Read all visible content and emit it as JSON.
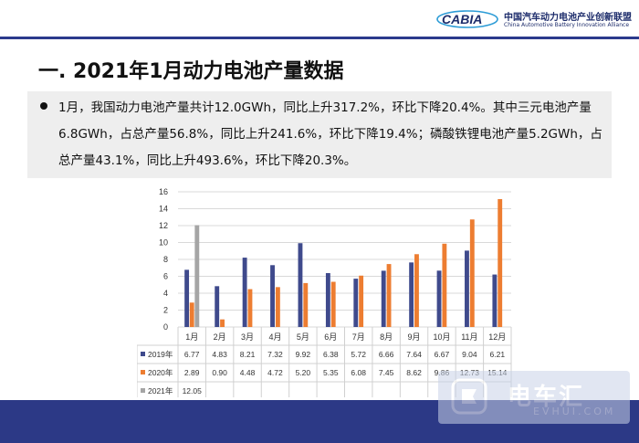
{
  "header": {
    "logo_text": "CABIA",
    "org_cn": "中国汽车动力电池产业创新联盟",
    "org_en": "China Automotive Battery Innovation Alliance"
  },
  "title": "一. 2021年1月动力电池产量数据",
  "summary": "1月，我国动力电池产量共计12.0GWh，同比上升317.2%，环比下降20.4%。其中三元电池产量6.8GWh，占总产量56.8%，同比上升241.6%，环比下降19.4%；磷酸铁锂电池产量5.2GWh，占总产量43.1%，同比上升493.6%，环比下降20.3%。",
  "watermark": {
    "name": "电车汇",
    "url": "EVHUI.COM"
  },
  "colors": {
    "brand_navy": "#2c3986",
    "s2019": "#3f4a8c",
    "s2020": "#ed7d31",
    "s2021": "#a5a5a5"
  },
  "chart_data": {
    "type": "bar",
    "categories": [
      "1月",
      "2月",
      "3月",
      "4月",
      "5月",
      "6月",
      "7月",
      "8月",
      "9月",
      "10月",
      "11月",
      "12月"
    ],
    "series": [
      {
        "name": "2019年",
        "color": "#3f4a8c",
        "values": [
          6.77,
          4.83,
          8.21,
          7.32,
          9.92,
          6.38,
          5.72,
          6.66,
          7.64,
          6.67,
          9.04,
          6.21
        ],
        "labels": [
          "6.77",
          "4.83",
          "8.21",
          "7.32",
          "9.92",
          "6.38",
          "5.72",
          "6.66",
          "7.64",
          "6.67",
          "9.04",
          "6.21"
        ]
      },
      {
        "name": "2020年",
        "color": "#ed7d31",
        "values": [
          2.89,
          0.9,
          4.48,
          4.72,
          5.2,
          5.35,
          6.08,
          7.45,
          8.62,
          9.86,
          12.73,
          15.14
        ],
        "labels": [
          "2.89",
          "0.90",
          "4.48",
          "4.72",
          "5.20",
          "5.35",
          "6.08",
          "7.45",
          "8.62",
          "9.86",
          "12.73",
          "15.14"
        ]
      },
      {
        "name": "2021年",
        "color": "#a5a5a5",
        "values": [
          12.05,
          null,
          null,
          null,
          null,
          null,
          null,
          null,
          null,
          null,
          null,
          null
        ],
        "labels": [
          "12.05",
          "",
          "",
          "",
          "",
          "",
          "",
          "",
          "",
          "",
          "",
          ""
        ]
      }
    ],
    "y_ticks": [
      "0",
      "2",
      "4",
      "6",
      "8",
      "10",
      "12",
      "14",
      "16"
    ],
    "ylim": [
      0,
      16
    ],
    "grid": true,
    "legend": "data-table"
  }
}
